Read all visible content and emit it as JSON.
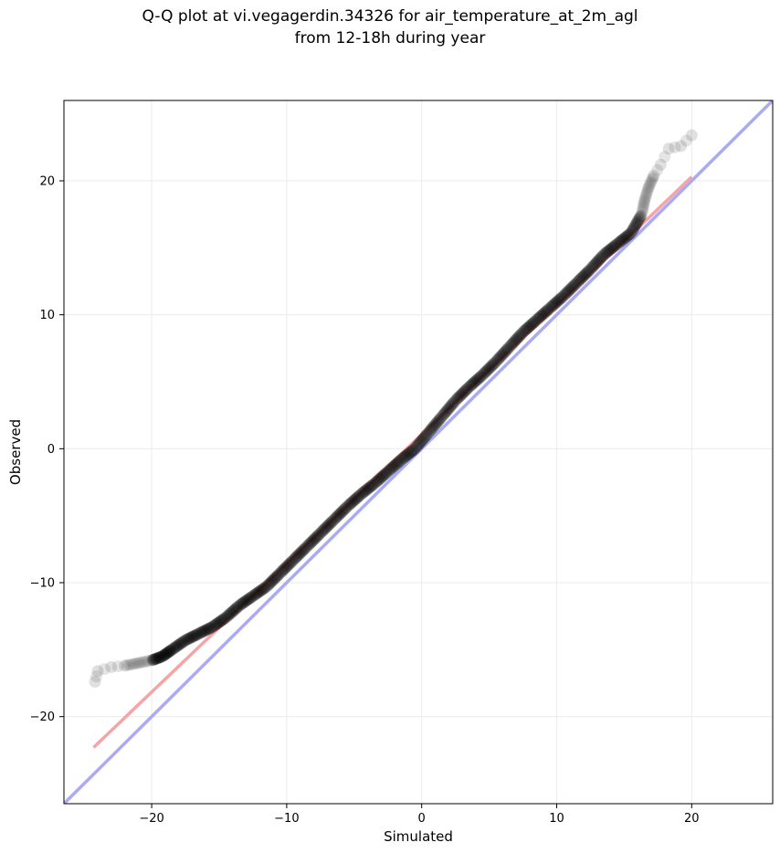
{
  "chart_data": {
    "type": "scatter",
    "title": "Q-Q plot at vi.vegagerdin.34326 for air_temperature_at_2m_agl",
    "subtitle": "from 12-18h during year",
    "xlabel": "Simulated",
    "ylabel": "Observed",
    "xlim": [
      -26.5,
      26.0
    ],
    "ylim": [
      -26.5,
      26.0
    ],
    "xticks": [
      -20,
      -10,
      0,
      10,
      20
    ],
    "yticks": [
      -20,
      -10,
      0,
      10,
      20
    ],
    "xtick_labels": [
      "−20",
      "−10",
      "0",
      "10",
      "20"
    ],
    "ytick_labels": [
      "−20",
      "−10",
      "0",
      "10",
      "20"
    ],
    "grid": true,
    "identity_line": {
      "color": "#aaaaf5",
      "x": [
        -26.5,
        26.0
      ],
      "y": [
        -26.5,
        26.0
      ]
    },
    "fit_line": {
      "color": "#f5a5a5",
      "x": [
        -24.3,
        20.0
      ],
      "y": [
        -22.3,
        20.3
      ]
    },
    "points_color": "#000000",
    "quantiles": [
      {
        "x": -24.2,
        "y": -17.4
      },
      {
        "x": -24.0,
        "y": -16.6
      },
      {
        "x": -23.0,
        "y": -16.3
      },
      {
        "x": -22.0,
        "y": -16.2
      },
      {
        "x": -21.0,
        "y": -16.0
      },
      {
        "x": -20.0,
        "y": -15.8
      },
      {
        "x": -19.2,
        "y": -15.5
      },
      {
        "x": -18.5,
        "y": -15.0
      },
      {
        "x": -17.5,
        "y": -14.3
      },
      {
        "x": -16.5,
        "y": -13.8
      },
      {
        "x": -15.5,
        "y": -13.3
      },
      {
        "x": -14.5,
        "y": -12.6
      },
      {
        "x": -13.5,
        "y": -11.7
      },
      {
        "x": -12.5,
        "y": -11.0
      },
      {
        "x": -11.5,
        "y": -10.3
      },
      {
        "x": -10.5,
        "y": -9.3
      },
      {
        "x": -9.5,
        "y": -8.3
      },
      {
        "x": -8.5,
        "y": -7.3
      },
      {
        "x": -7.5,
        "y": -6.3
      },
      {
        "x": -6.5,
        "y": -5.3
      },
      {
        "x": -5.5,
        "y": -4.3
      },
      {
        "x": -4.5,
        "y": -3.4
      },
      {
        "x": -3.5,
        "y": -2.6
      },
      {
        "x": -2.5,
        "y": -1.7
      },
      {
        "x": -1.5,
        "y": -0.8
      },
      {
        "x": -0.5,
        "y": 0.0
      },
      {
        "x": 0.5,
        "y": 1.2
      },
      {
        "x": 1.5,
        "y": 2.4
      },
      {
        "x": 2.5,
        "y": 3.6
      },
      {
        "x": 3.5,
        "y": 4.6
      },
      {
        "x": 4.5,
        "y": 5.5
      },
      {
        "x": 5.5,
        "y": 6.5
      },
      {
        "x": 6.5,
        "y": 7.6
      },
      {
        "x": 7.5,
        "y": 8.7
      },
      {
        "x": 8.5,
        "y": 9.6
      },
      {
        "x": 9.5,
        "y": 10.5
      },
      {
        "x": 10.5,
        "y": 11.4
      },
      {
        "x": 11.5,
        "y": 12.4
      },
      {
        "x": 12.5,
        "y": 13.4
      },
      {
        "x": 13.5,
        "y": 14.5
      },
      {
        "x": 14.5,
        "y": 15.3
      },
      {
        "x": 15.5,
        "y": 16.1
      },
      {
        "x": 16.3,
        "y": 17.5
      },
      {
        "x": 16.5,
        "y": 18.5
      },
      {
        "x": 16.8,
        "y": 19.5
      },
      {
        "x": 17.2,
        "y": 20.4
      },
      {
        "x": 17.7,
        "y": 21.2
      },
      {
        "x": 18.3,
        "y": 22.4
      },
      {
        "x": 19.2,
        "y": 22.6
      },
      {
        "x": 20.0,
        "y": 23.4
      }
    ]
  }
}
